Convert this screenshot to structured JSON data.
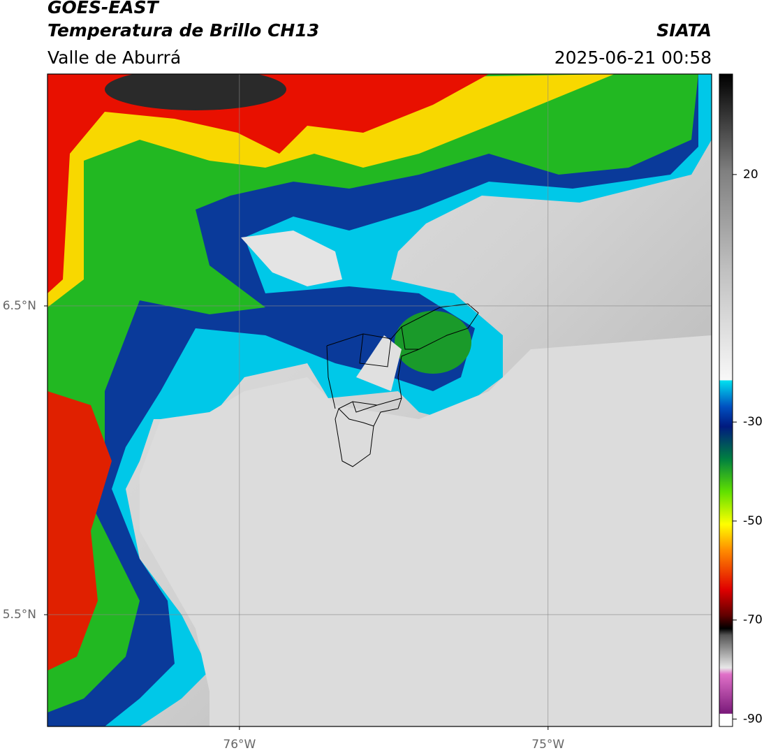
{
  "header": {
    "satellite": "GOES-EAST",
    "product": "Temperatura de Brillo CH13",
    "region": "Valle de Aburrá",
    "source": "SIATA",
    "datetime": "2025-06-21 00:58"
  },
  "map": {
    "xlim": [
      -76.622,
      -74.47
    ],
    "ylim": [
      5.138,
      7.251
    ],
    "xticks": [
      {
        "value": -76,
        "label": "76°W"
      },
      {
        "value": -75,
        "label": "75°W"
      }
    ],
    "yticks": [
      {
        "value": 5.5,
        "label": "5.5°N"
      },
      {
        "value": 6.5,
        "label": "6.5°N"
      }
    ],
    "grid": true
  },
  "colorbar": {
    "clim": [
      -91.5,
      40.3
    ],
    "ticks": [
      20,
      -30,
      -50,
      -70,
      -90
    ]
  }
}
